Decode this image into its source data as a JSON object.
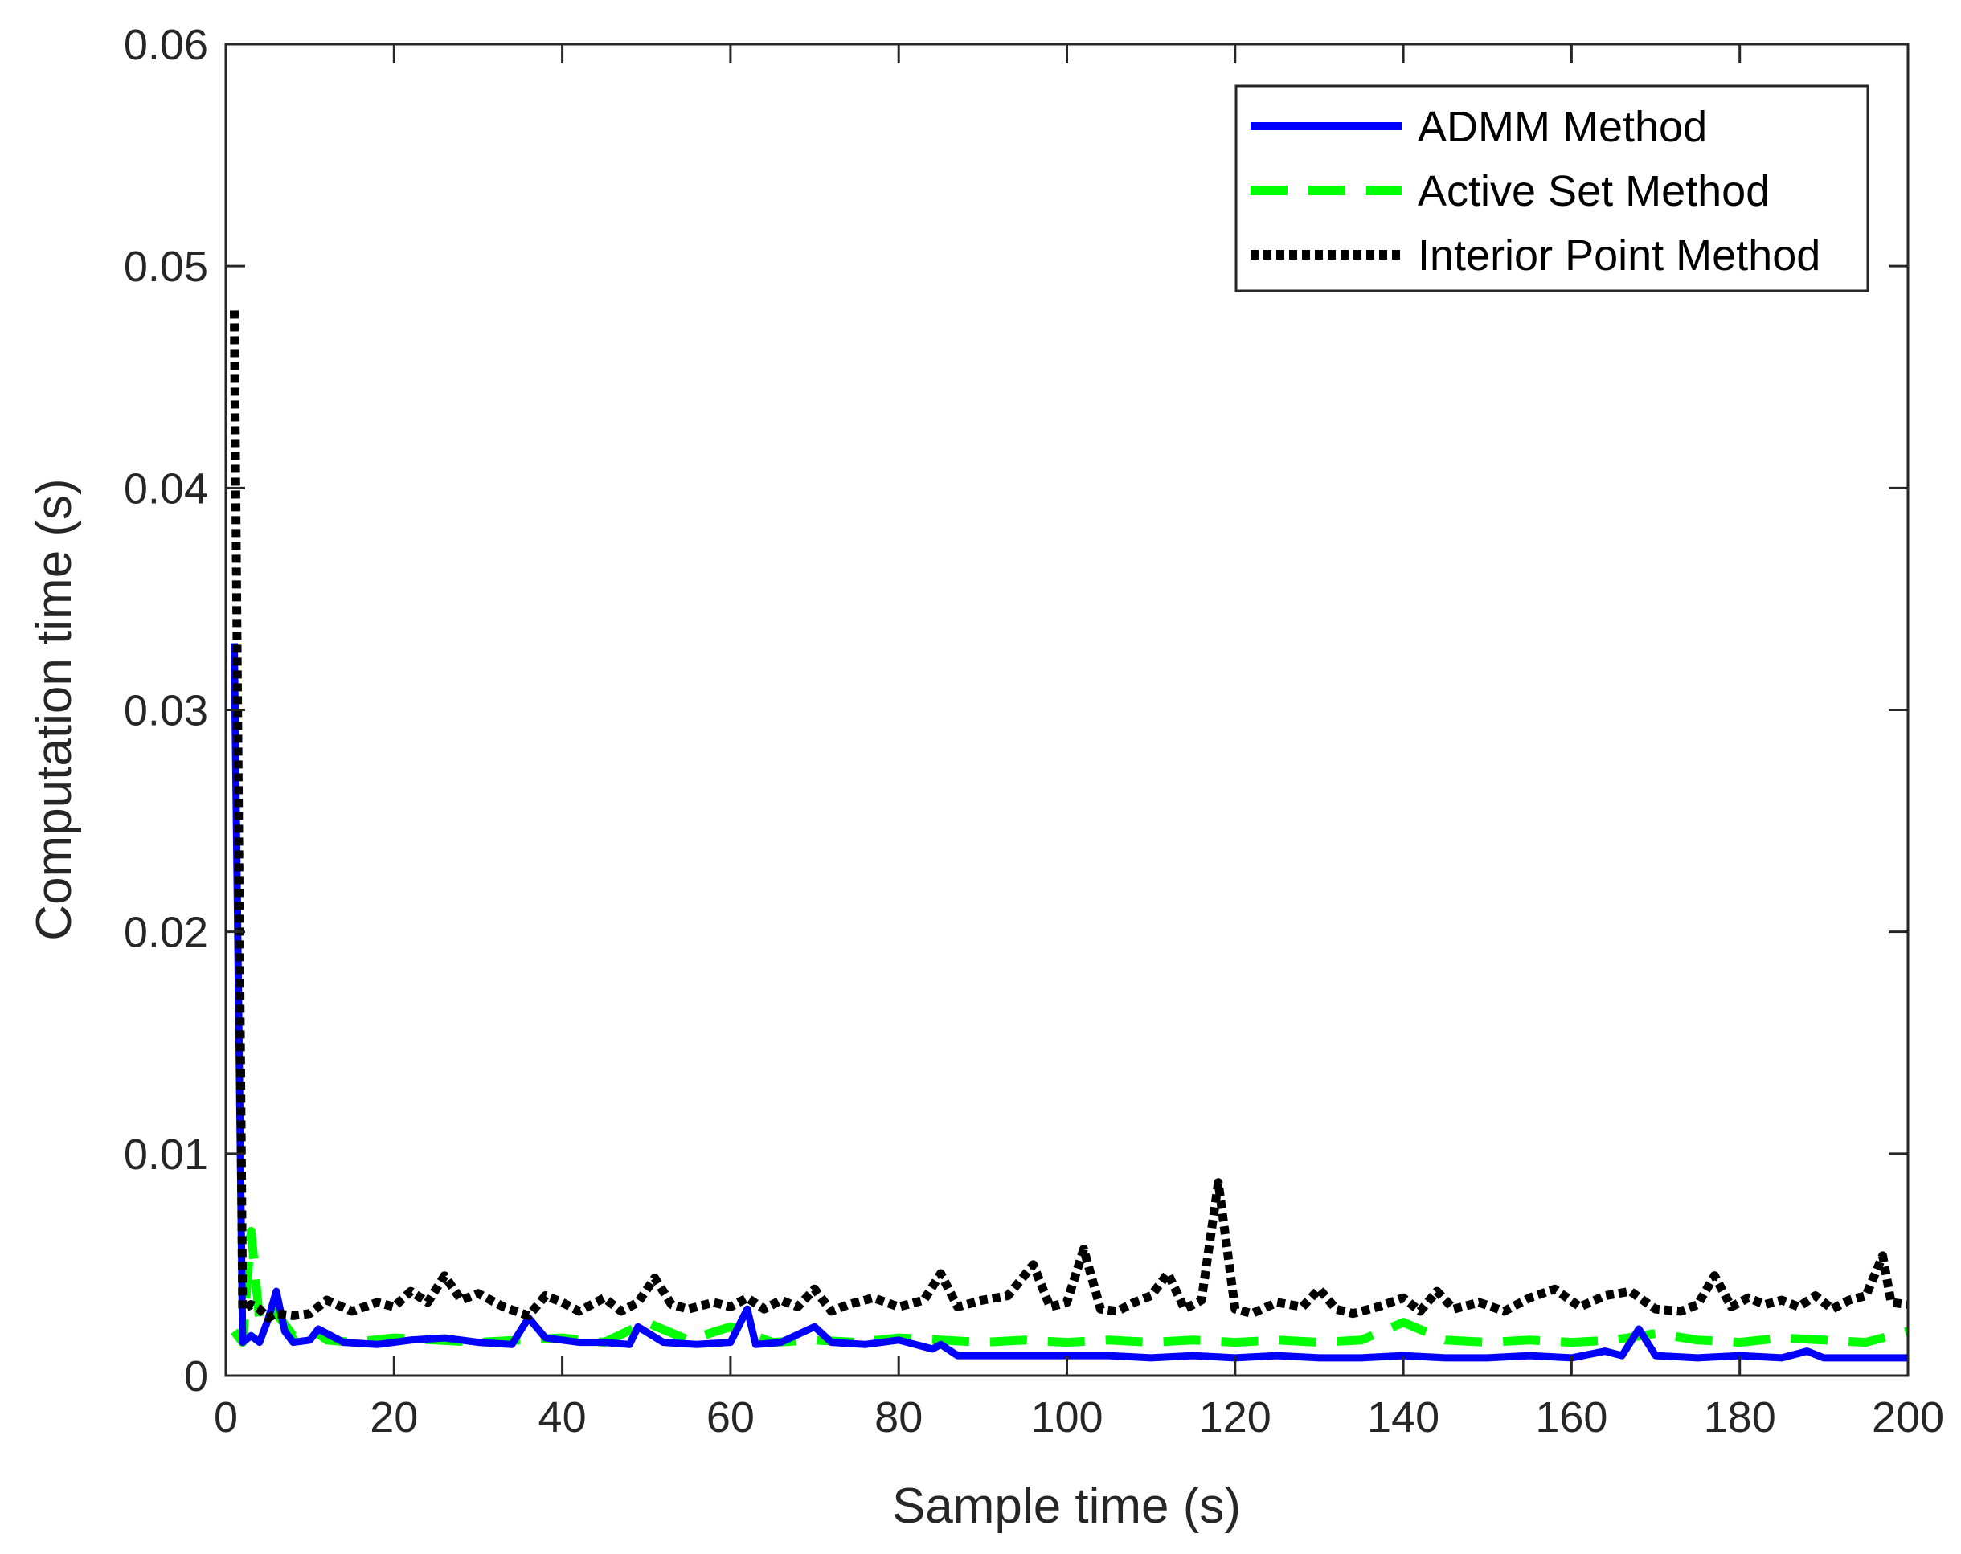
{
  "chart_data": {
    "type": "line",
    "title": "",
    "xlabel": "Sample time (s)",
    "ylabel": "Computation time (s)",
    "xlim": [
      0,
      200
    ],
    "ylim": [
      0,
      0.06
    ],
    "xticks": [
      0,
      20,
      40,
      60,
      80,
      100,
      120,
      140,
      160,
      180,
      200
    ],
    "xtick_labels": [
      "0",
      "20",
      "40",
      "60",
      "80",
      "100",
      "120",
      "140",
      "160",
      "180",
      "200"
    ],
    "yticks": [
      0,
      0.01,
      0.02,
      0.03,
      0.04,
      0.05,
      0.06
    ],
    "ytick_labels": [
      "0",
      "0.01",
      "0.02",
      "0.03",
      "0.04",
      "0.05",
      "0.06"
    ],
    "grid": false,
    "legend_position": "top-right",
    "series": [
      {
        "name": "ADMM Method",
        "color": "#0000ff",
        "dash": "solid",
        "x": [
          1,
          2,
          3,
          4,
          5,
          6,
          7,
          8,
          10,
          11,
          14,
          18,
          22,
          26,
          30,
          34,
          36,
          38,
          42,
          45,
          48,
          49,
          52,
          56,
          60,
          62,
          63,
          66,
          70,
          72,
          76,
          80,
          82,
          84,
          85,
          87,
          90,
          95,
          100,
          105,
          110,
          115,
          120,
          125,
          130,
          135,
          140,
          145,
          150,
          155,
          160,
          164,
          166,
          168,
          170,
          175,
          180,
          185,
          188,
          190,
          195,
          200
        ],
        "y": [
          0.033,
          0.0015,
          0.0018,
          0.0015,
          0.0025,
          0.0038,
          0.002,
          0.0015,
          0.0016,
          0.0021,
          0.0015,
          0.0014,
          0.0016,
          0.0017,
          0.0015,
          0.0014,
          0.0026,
          0.0017,
          0.0015,
          0.0015,
          0.0014,
          0.0022,
          0.0015,
          0.0014,
          0.0015,
          0.003,
          0.0014,
          0.0015,
          0.0022,
          0.0015,
          0.0014,
          0.0016,
          0.0014,
          0.0012,
          0.0014,
          0.0009,
          0.0009,
          0.0009,
          0.0009,
          0.0009,
          0.0008,
          0.0009,
          0.0008,
          0.0009,
          0.0008,
          0.0008,
          0.0009,
          0.0008,
          0.0008,
          0.0009,
          0.0008,
          0.0011,
          0.0009,
          0.0021,
          0.0009,
          0.0008,
          0.0009,
          0.0008,
          0.0011,
          0.0008,
          0.0008,
          0.0008
        ]
      },
      {
        "name": "Active Set Method",
        "color": "#00ff00",
        "dash": "dashed",
        "x": [
          1,
          2,
          3,
          4,
          5,
          6,
          8,
          10,
          12,
          15,
          20,
          25,
          30,
          35,
          40,
          45,
          50,
          55,
          60,
          65,
          70,
          75,
          80,
          85,
          90,
          95,
          100,
          105,
          110,
          115,
          120,
          125,
          130,
          135,
          140,
          145,
          150,
          155,
          160,
          165,
          170,
          175,
          180,
          185,
          190,
          195,
          200
        ],
        "y": [
          0.002,
          0.0015,
          0.0065,
          0.0025,
          0.003,
          0.0028,
          0.0018,
          0.0022,
          0.0016,
          0.0015,
          0.0017,
          0.0016,
          0.0015,
          0.0016,
          0.0017,
          0.0015,
          0.0024,
          0.0016,
          0.0022,
          0.0015,
          0.0016,
          0.0015,
          0.0017,
          0.0016,
          0.0015,
          0.0016,
          0.0015,
          0.0016,
          0.0015,
          0.0016,
          0.0015,
          0.0016,
          0.0015,
          0.0016,
          0.0024,
          0.0016,
          0.0015,
          0.0016,
          0.0015,
          0.0016,
          0.0019,
          0.0016,
          0.0015,
          0.0017,
          0.0016,
          0.0015,
          0.002
        ]
      },
      {
        "name": "Interior Point Method",
        "color": "#000000",
        "dash": "dotted",
        "x": [
          1,
          2,
          3,
          4,
          5,
          6,
          8,
          10,
          12,
          15,
          18,
          20,
          22,
          24,
          26,
          28,
          30,
          33,
          36,
          38,
          40,
          42,
          45,
          47,
          49,
          51,
          53,
          55,
          58,
          60,
          62,
          64,
          66,
          68,
          70,
          72,
          74,
          77,
          80,
          83,
          85,
          87,
          90,
          93,
          96,
          98,
          100,
          102,
          104,
          106,
          108,
          110,
          112,
          114,
          116,
          118,
          120,
          122,
          125,
          128,
          130,
          132,
          134,
          137,
          140,
          142,
          144,
          146,
          149,
          152,
          155,
          158,
          161,
          164,
          167,
          170,
          173,
          175,
          177,
          179,
          181,
          183,
          185,
          187,
          189,
          191,
          193,
          195,
          197,
          198,
          200
        ],
        "y": [
          0.048,
          0.003,
          0.0032,
          0.003,
          0.0026,
          0.0028,
          0.0027,
          0.0028,
          0.0034,
          0.0029,
          0.0033,
          0.0031,
          0.0038,
          0.0033,
          0.0045,
          0.0034,
          0.0037,
          0.0031,
          0.0027,
          0.0036,
          0.0033,
          0.0029,
          0.0035,
          0.0029,
          0.0033,
          0.0044,
          0.0032,
          0.003,
          0.0033,
          0.0031,
          0.0035,
          0.003,
          0.0034,
          0.0031,
          0.0039,
          0.0029,
          0.0032,
          0.0035,
          0.0031,
          0.0034,
          0.0046,
          0.0031,
          0.0034,
          0.0036,
          0.005,
          0.0031,
          0.0033,
          0.0057,
          0.003,
          0.0029,
          0.0033,
          0.0036,
          0.0046,
          0.003,
          0.0034,
          0.0087,
          0.003,
          0.0028,
          0.0033,
          0.0031,
          0.0039,
          0.003,
          0.0028,
          0.0031,
          0.0035,
          0.0029,
          0.0038,
          0.003,
          0.0033,
          0.0029,
          0.0035,
          0.0039,
          0.0031,
          0.0036,
          0.0038,
          0.003,
          0.0029,
          0.0032,
          0.0045,
          0.0031,
          0.0035,
          0.0032,
          0.0034,
          0.0031,
          0.0036,
          0.003,
          0.0034,
          0.0036,
          0.0054,
          0.0033,
          0.0032
        ]
      }
    ]
  }
}
